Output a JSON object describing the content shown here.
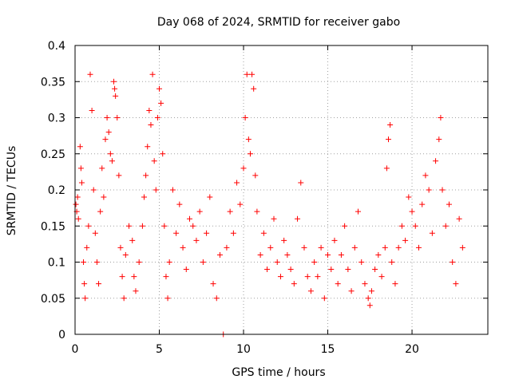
{
  "chart_data": {
    "type": "scatter",
    "title": "Day 068 of 2024, SRMTID for receiver gabo",
    "xlabel": "GPS time / hours",
    "ylabel": "SRMTID / TECUs",
    "xlim": [
      0,
      24.5
    ],
    "ylim": [
      0,
      0.4
    ],
    "grid": true,
    "marker": "+",
    "x_ticks": [
      0,
      5,
      10,
      15,
      20
    ],
    "x_tick_labels": [
      "0",
      "5",
      "10",
      "15",
      "20"
    ],
    "y_ticks": [
      0,
      0.05,
      0.1,
      0.15,
      0.2,
      0.25,
      0.3,
      0.35,
      0.4
    ],
    "y_tick_labels": [
      "0",
      "0.05",
      "0.1",
      "0.15",
      "0.2",
      "0.25",
      "0.3",
      "0.35",
      "0.4"
    ],
    "series": [
      {
        "name": "gabo",
        "color": "#ff0000",
        "points": [
          [
            0.05,
            0.18
          ],
          [
            0.1,
            0.17
          ],
          [
            0.15,
            0.19
          ],
          [
            0.2,
            0.16
          ],
          [
            0.3,
            0.26
          ],
          [
            0.35,
            0.23
          ],
          [
            0.4,
            0.21
          ],
          [
            0.5,
            0.1
          ],
          [
            0.55,
            0.07
          ],
          [
            0.6,
            0.05
          ],
          [
            0.7,
            0.12
          ],
          [
            0.8,
            0.15
          ],
          [
            0.9,
            0.36
          ],
          [
            1.0,
            0.31
          ],
          [
            1.1,
            0.2
          ],
          [
            1.2,
            0.14
          ],
          [
            1.3,
            0.1
          ],
          [
            1.4,
            0.07
          ],
          [
            1.5,
            0.17
          ],
          [
            1.6,
            0.23
          ],
          [
            1.7,
            0.19
          ],
          [
            1.8,
            0.27
          ],
          [
            1.9,
            0.3
          ],
          [
            2.0,
            0.28
          ],
          [
            2.1,
            0.25
          ],
          [
            2.2,
            0.24
          ],
          [
            2.3,
            0.35
          ],
          [
            2.35,
            0.34
          ],
          [
            2.4,
            0.33
          ],
          [
            2.5,
            0.3
          ],
          [
            2.6,
            0.22
          ],
          [
            2.7,
            0.12
          ],
          [
            2.8,
            0.08
          ],
          [
            2.9,
            0.05
          ],
          [
            3.0,
            0.11
          ],
          [
            3.2,
            0.15
          ],
          [
            3.4,
            0.13
          ],
          [
            3.5,
            0.08
          ],
          [
            3.6,
            0.06
          ],
          [
            3.8,
            0.1
          ],
          [
            4.0,
            0.15
          ],
          [
            4.1,
            0.19
          ],
          [
            4.2,
            0.22
          ],
          [
            4.3,
            0.26
          ],
          [
            4.4,
            0.31
          ],
          [
            4.5,
            0.29
          ],
          [
            4.6,
            0.36
          ],
          [
            4.7,
            0.24
          ],
          [
            4.8,
            0.2
          ],
          [
            4.9,
            0.3
          ],
          [
            5.0,
            0.34
          ],
          [
            5.1,
            0.32
          ],
          [
            5.2,
            0.25
          ],
          [
            5.3,
            0.15
          ],
          [
            5.4,
            0.08
          ],
          [
            5.5,
            0.05
          ],
          [
            5.6,
            0.1
          ],
          [
            5.8,
            0.2
          ],
          [
            6.0,
            0.14
          ],
          [
            6.2,
            0.18
          ],
          [
            6.4,
            0.12
          ],
          [
            6.6,
            0.09
          ],
          [
            6.8,
            0.16
          ],
          [
            7.0,
            0.15
          ],
          [
            7.2,
            0.13
          ],
          [
            7.4,
            0.17
          ],
          [
            7.6,
            0.1
          ],
          [
            7.8,
            0.14
          ],
          [
            8.0,
            0.19
          ],
          [
            8.2,
            0.07
          ],
          [
            8.4,
            0.05
          ],
          [
            8.6,
            0.11
          ],
          [
            8.8,
            0.0
          ],
          [
            9.0,
            0.12
          ],
          [
            9.2,
            0.17
          ],
          [
            9.4,
            0.14
          ],
          [
            9.6,
            0.21
          ],
          [
            9.8,
            0.18
          ],
          [
            10.0,
            0.23
          ],
          [
            10.1,
            0.3
          ],
          [
            10.2,
            0.36
          ],
          [
            10.3,
            0.27
          ],
          [
            10.4,
            0.25
          ],
          [
            10.5,
            0.36
          ],
          [
            10.6,
            0.34
          ],
          [
            10.7,
            0.22
          ],
          [
            10.8,
            0.17
          ],
          [
            11.0,
            0.11
          ],
          [
            11.2,
            0.14
          ],
          [
            11.4,
            0.09
          ],
          [
            11.6,
            0.12
          ],
          [
            11.8,
            0.16
          ],
          [
            12.0,
            0.1
          ],
          [
            12.2,
            0.08
          ],
          [
            12.4,
            0.13
          ],
          [
            12.6,
            0.11
          ],
          [
            12.8,
            0.09
          ],
          [
            13.0,
            0.07
          ],
          [
            13.2,
            0.16
          ],
          [
            13.4,
            0.21
          ],
          [
            13.6,
            0.12
          ],
          [
            13.8,
            0.08
          ],
          [
            14.0,
            0.06
          ],
          [
            14.2,
            0.1
          ],
          [
            14.4,
            0.08
          ],
          [
            14.6,
            0.12
          ],
          [
            14.8,
            0.05
          ],
          [
            15.0,
            0.11
          ],
          [
            15.2,
            0.09
          ],
          [
            15.4,
            0.13
          ],
          [
            15.6,
            0.07
          ],
          [
            15.8,
            0.11
          ],
          [
            16.0,
            0.15
          ],
          [
            16.2,
            0.09
          ],
          [
            16.4,
            0.06
          ],
          [
            16.6,
            0.12
          ],
          [
            16.8,
            0.17
          ],
          [
            17.0,
            0.1
          ],
          [
            17.2,
            0.07
          ],
          [
            17.4,
            0.05
          ],
          [
            17.5,
            0.04
          ],
          [
            17.6,
            0.06
          ],
          [
            17.8,
            0.09
          ],
          [
            18.0,
            0.11
          ],
          [
            18.2,
            0.08
          ],
          [
            18.4,
            0.12
          ],
          [
            18.5,
            0.23
          ],
          [
            18.6,
            0.27
          ],
          [
            18.7,
            0.29
          ],
          [
            18.8,
            0.1
          ],
          [
            19.0,
            0.07
          ],
          [
            19.2,
            0.12
          ],
          [
            19.4,
            0.15
          ],
          [
            19.6,
            0.13
          ],
          [
            19.8,
            0.19
          ],
          [
            20.0,
            0.17
          ],
          [
            20.2,
            0.15
          ],
          [
            20.4,
            0.12
          ],
          [
            20.6,
            0.18
          ],
          [
            20.8,
            0.22
          ],
          [
            21.0,
            0.2
          ],
          [
            21.2,
            0.14
          ],
          [
            21.4,
            0.24
          ],
          [
            21.6,
            0.27
          ],
          [
            21.7,
            0.3
          ],
          [
            21.8,
            0.2
          ],
          [
            22.0,
            0.15
          ],
          [
            22.2,
            0.18
          ],
          [
            22.4,
            0.1
          ],
          [
            22.6,
            0.07
          ],
          [
            22.8,
            0.16
          ],
          [
            23.0,
            0.12
          ]
        ]
      }
    ]
  }
}
